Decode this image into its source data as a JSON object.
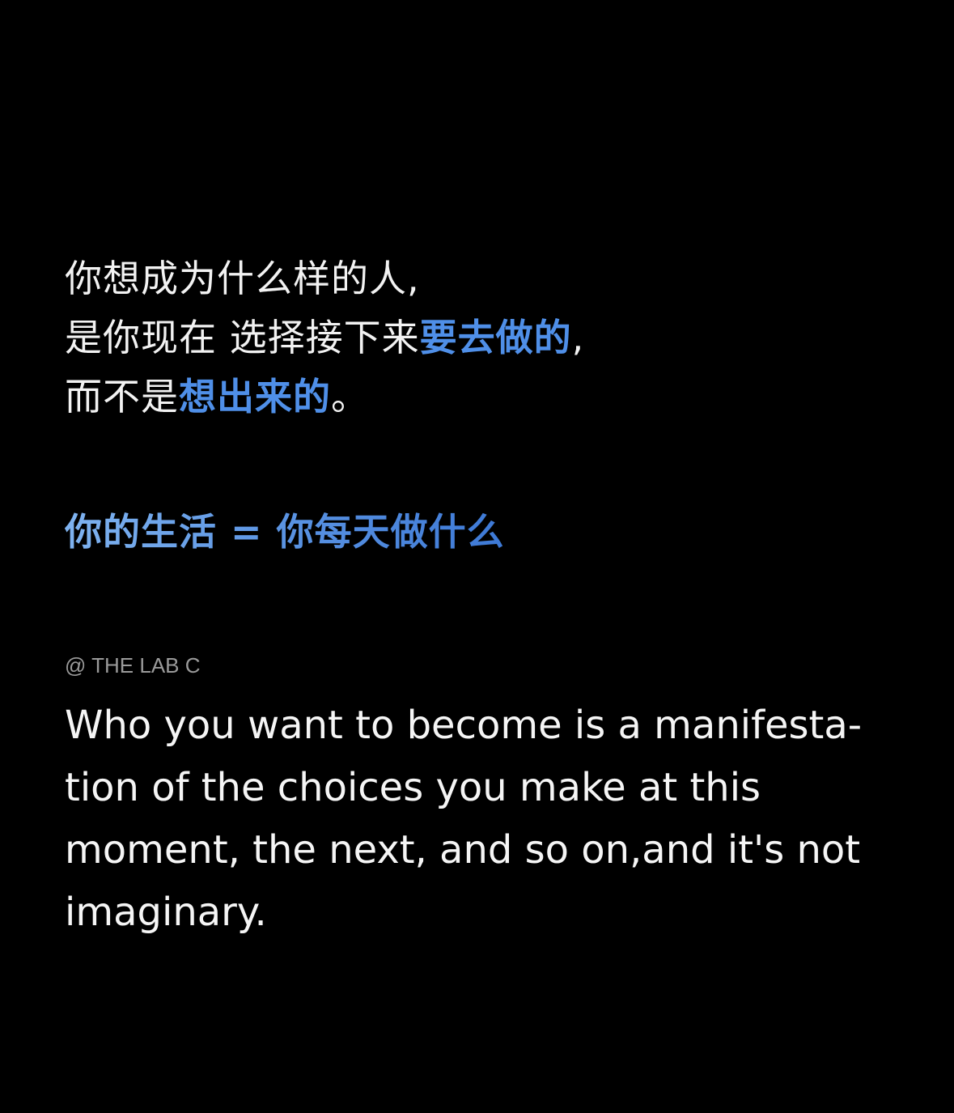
{
  "chinese_lines": [
    {
      "parts": [
        "你想成为什么样的人,"
      ]
    },
    {
      "parts": [
        "是你现在 选择接下来",
        "要去做的",
        ","
      ]
    },
    {
      "parts": [
        "而不是",
        "想出来的",
        "。"
      ]
    }
  ],
  "formula": "你的生活 = 你每天做什么",
  "credit": "@ THE LAB C",
  "english_lines": [
    "Who you want to become is a manifesta-",
    "tion of the choices you make at this",
    "moment, the next, and so on,and it's not",
    "imaginary."
  ],
  "colors": {
    "background": "#000000",
    "text": "#ffffff",
    "highlight": "#4f8fe8",
    "credit": "#9a9a9a"
  }
}
